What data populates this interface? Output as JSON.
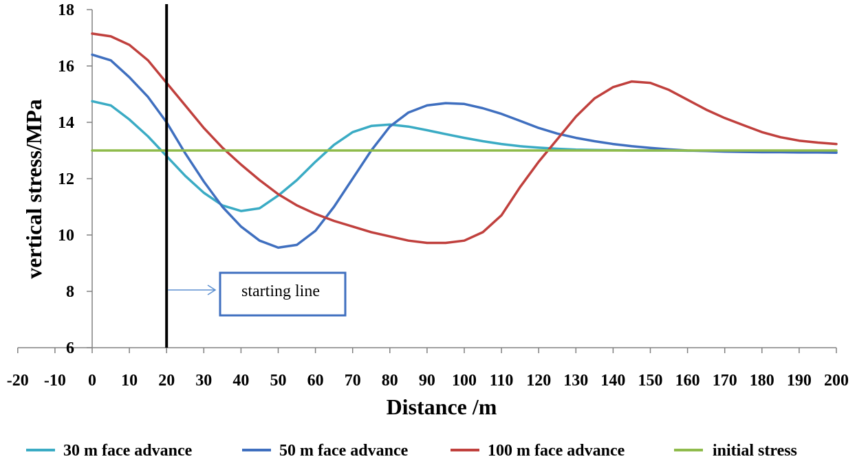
{
  "chart_data": {
    "type": "line",
    "xlabel": "Distance /m",
    "ylabel": "vertical stress/MPa",
    "xlim": [
      -20,
      200
    ],
    "ylim": [
      6,
      18
    ],
    "xticks": [
      -20,
      -10,
      0,
      10,
      20,
      30,
      40,
      50,
      60,
      70,
      80,
      90,
      100,
      110,
      120,
      130,
      140,
      150,
      160,
      170,
      180,
      190,
      200
    ],
    "yticks": [
      6,
      8,
      10,
      12,
      14,
      16,
      18
    ],
    "grid": false,
    "legend_position": "bottom",
    "x": [
      0,
      5,
      10,
      15,
      20,
      25,
      30,
      35,
      40,
      45,
      50,
      55,
      60,
      65,
      70,
      75,
      80,
      85,
      90,
      95,
      100,
      105,
      110,
      115,
      120,
      125,
      130,
      135,
      140,
      145,
      150,
      155,
      160,
      165,
      170,
      175,
      180,
      185,
      190,
      195,
      200
    ],
    "series": [
      {
        "name": "30 m face advance",
        "color": "#3aabc4",
        "values": [
          14.75,
          14.6,
          14.1,
          13.5,
          12.8,
          12.1,
          11.5,
          11.05,
          10.85,
          10.95,
          11.4,
          11.95,
          12.6,
          13.2,
          13.65,
          13.87,
          13.92,
          13.85,
          13.72,
          13.58,
          13.45,
          13.33,
          13.23,
          13.15,
          13.1,
          13.06,
          13.03,
          13.02,
          13.01,
          13.0,
          13.0,
          13.0,
          12.99,
          12.99,
          12.98,
          12.98,
          12.97,
          12.97,
          12.96,
          12.96,
          12.95
        ]
      },
      {
        "name": "50 m face advance",
        "color": "#3f6fbf",
        "values": [
          16.4,
          16.2,
          15.6,
          14.9,
          14.0,
          12.9,
          11.9,
          11.0,
          10.3,
          9.8,
          9.55,
          9.65,
          10.15,
          11.0,
          12.0,
          13.0,
          13.85,
          14.35,
          14.6,
          14.68,
          14.65,
          14.5,
          14.3,
          14.05,
          13.8,
          13.6,
          13.45,
          13.33,
          13.23,
          13.15,
          13.09,
          13.04,
          13.0,
          12.98,
          12.96,
          12.95,
          12.94,
          12.94,
          12.93,
          12.93,
          12.92
        ]
      },
      {
        "name": "100 m face advance",
        "color": "#c0403d",
        "values": [
          17.15,
          17.05,
          16.75,
          16.2,
          15.4,
          14.6,
          13.8,
          13.1,
          12.5,
          11.95,
          11.45,
          11.05,
          10.75,
          10.5,
          10.3,
          10.1,
          9.95,
          9.8,
          9.72,
          9.72,
          9.8,
          10.1,
          10.7,
          11.7,
          12.6,
          13.4,
          14.2,
          14.85,
          15.25,
          15.45,
          15.4,
          15.15,
          14.8,
          14.45,
          14.15,
          13.9,
          13.65,
          13.47,
          13.35,
          13.28,
          13.23
        ]
      },
      {
        "name": "initial stress",
        "color": "#8fbb4c",
        "values": [
          13.0,
          13.0,
          13.0,
          13.0,
          13.0,
          13.0,
          13.0,
          13.0,
          13.0,
          13.0,
          13.0,
          13.0,
          13.0,
          13.0,
          13.0,
          13.0,
          13.0,
          13.0,
          13.0,
          13.0,
          13.0,
          13.0,
          13.0,
          13.0,
          13.0,
          13.0,
          13.0,
          13.0,
          13.0,
          13.0,
          13.0,
          13.0,
          13.0,
          13.0,
          13.0,
          13.0,
          13.0,
          13.0,
          13.0,
          13.0,
          13.0
        ]
      }
    ],
    "reference_line": {
      "x": 20,
      "color": "#000000"
    },
    "annotation": {
      "text": "starting line",
      "box_color": "#3f6fbf",
      "arrow_color": "#5b8fd0"
    }
  }
}
